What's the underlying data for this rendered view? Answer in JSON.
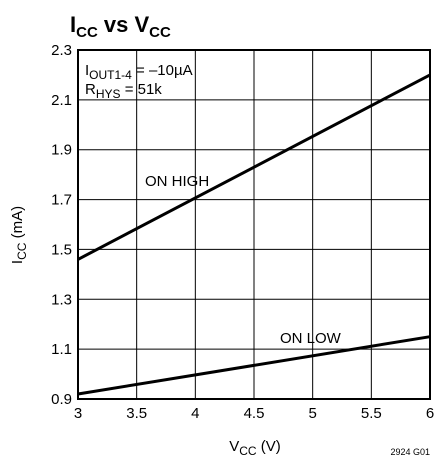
{
  "chart_data": {
    "type": "line",
    "title": {
      "main": "I",
      "sub1": "CC",
      "mid": " vs V",
      "sub2": "CC"
    },
    "xlabel": {
      "main": "V",
      "sub": "CC",
      "rest": " (V)"
    },
    "ylabel": {
      "main": "I",
      "sub": "CC",
      "rest": " (mA)"
    },
    "x_ticks": [
      "3",
      "3.5",
      "4",
      "4.5",
      "5",
      "5.5",
      "6"
    ],
    "y_ticks": [
      "0.9",
      "1.1",
      "1.3",
      "1.5",
      "1.7",
      "1.9",
      "2.1",
      "2.3"
    ],
    "xlim": [
      3,
      6
    ],
    "ylim": [
      0.9,
      2.3
    ],
    "grid": true,
    "annotation_line1": {
      "main": "I",
      "sub": "OUT1-4",
      "rest": " = –10µA"
    },
    "annotation_line2": {
      "main": "R",
      "sub": "HYS",
      "rest": " = 51k"
    },
    "series": [
      {
        "name": "ON HIGH",
        "x": [
          3,
          6
        ],
        "y": [
          1.46,
          2.2
        ]
      },
      {
        "name": "ON LOW",
        "x": [
          3,
          6
        ],
        "y": [
          0.92,
          1.15
        ]
      }
    ],
    "figure_id": "2924 G01"
  }
}
